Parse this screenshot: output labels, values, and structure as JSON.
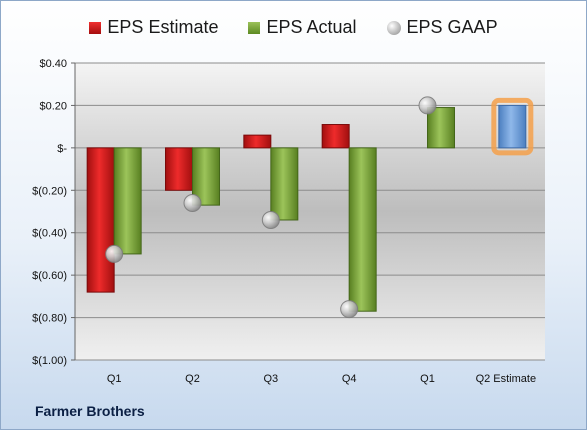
{
  "legend": {
    "estimate_label": "EPS Estimate",
    "actual_label": "EPS Actual",
    "gaap_label": "EPS GAAP"
  },
  "company": "Farmer Brothers",
  "colors": {
    "estimate": "#d42020",
    "actual": "#77a33a",
    "gaap": "#b8b8b8",
    "future_estimate": "#6f9fd8",
    "highlight": "#f5a04a"
  },
  "chart_data": {
    "type": "bar",
    "categories": [
      "Q1",
      "Q2",
      "Q3",
      "Q4",
      "Q1",
      "Q2 Estimate"
    ],
    "ylim": [
      -1.0,
      0.4
    ],
    "yticks": [
      0.4,
      0.2,
      0,
      -0.2,
      -0.4,
      -0.6,
      -0.8,
      -1.0
    ],
    "ytick_labels": [
      "$0.40",
      "$0.20",
      "$-",
      "$(0.20)",
      "$(0.40)",
      "$(0.60)",
      "$(0.80)",
      "$(1.00)"
    ],
    "grid": true,
    "legend_position": "top",
    "series": [
      {
        "name": "EPS Estimate",
        "values": [
          -0.68,
          -0.2,
          0.06,
          0.11,
          null,
          0.2
        ]
      },
      {
        "name": "EPS Actual",
        "values": [
          -0.5,
          -0.27,
          -0.34,
          -0.77,
          0.19,
          null
        ]
      },
      {
        "name": "EPS GAAP",
        "values": [
          -0.5,
          -0.26,
          -0.34,
          -0.76,
          0.2,
          null
        ]
      }
    ]
  }
}
